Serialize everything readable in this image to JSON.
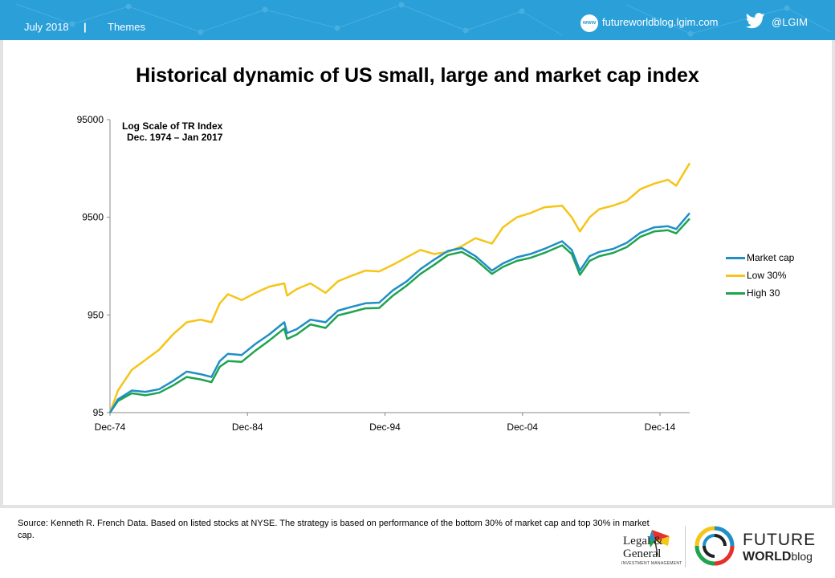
{
  "header": {
    "date": "July 2018",
    "separator": "|",
    "section": "Themes",
    "site_icon": "www-icon",
    "site": "futureworldblog.lgim.com",
    "social_icon": "twitter-icon",
    "handle": "@LGIM"
  },
  "chart_data": {
    "type": "line",
    "title": "Historical dynamic of US small, large and market cap index",
    "note_line1": "Log  Scale of TR Index",
    "note_line2": "Dec. 1974 – Jan 2017",
    "y_scale": "log",
    "ylim": [
      95,
      95000
    ],
    "y_ticks": [
      "95000",
      "9500",
      "950",
      "95"
    ],
    "x_ticks": [
      "Dec-74",
      "Dec-84",
      "Dec-94",
      "Dec-04",
      "Dec-14"
    ],
    "x_tick_years": [
      1974.92,
      1984.92,
      1994.92,
      2004.92,
      2014.92
    ],
    "xlim": [
      1974.92,
      2017.08
    ],
    "grid": false,
    "legend_position": "right",
    "series": [
      {
        "name": "Market cap",
        "color": "#1f8fc5",
        "points": [
          [
            1974.92,
            95
          ],
          [
            1975.5,
            130
          ],
          [
            1976.5,
            160
          ],
          [
            1977.5,
            155
          ],
          [
            1978.5,
            165
          ],
          [
            1979.5,
            200
          ],
          [
            1980.5,
            250
          ],
          [
            1981.5,
            235
          ],
          [
            1982.3,
            220
          ],
          [
            1982.9,
            320
          ],
          [
            1983.5,
            380
          ],
          [
            1984.5,
            370
          ],
          [
            1985.5,
            480
          ],
          [
            1986.5,
            600
          ],
          [
            1987.6,
            800
          ],
          [
            1987.8,
            620
          ],
          [
            1988.5,
            680
          ],
          [
            1989.5,
            850
          ],
          [
            1990.6,
            800
          ],
          [
            1991.5,
            1050
          ],
          [
            1992.5,
            1150
          ],
          [
            1993.5,
            1250
          ],
          [
            1994.5,
            1270
          ],
          [
            1995.5,
            1700
          ],
          [
            1996.5,
            2100
          ],
          [
            1997.5,
            2800
          ],
          [
            1998.5,
            3500
          ],
          [
            1999.5,
            4300
          ],
          [
            2000.5,
            4600
          ],
          [
            2001.5,
            3800
          ],
          [
            2002.7,
            2700
          ],
          [
            2003.5,
            3200
          ],
          [
            2004.5,
            3700
          ],
          [
            2005.5,
            4000
          ],
          [
            2006.5,
            4500
          ],
          [
            2007.8,
            5400
          ],
          [
            2008.5,
            4400
          ],
          [
            2009.1,
            2700
          ],
          [
            2009.8,
            3800
          ],
          [
            2010.5,
            4200
          ],
          [
            2011.5,
            4500
          ],
          [
            2012.5,
            5200
          ],
          [
            2013.5,
            6600
          ],
          [
            2014.5,
            7500
          ],
          [
            2015.5,
            7700
          ],
          [
            2016.1,
            7200
          ],
          [
            2017.08,
            10500
          ]
        ]
      },
      {
        "name": "Low 30%",
        "color": "#f5c518",
        "points": [
          [
            1974.92,
            95
          ],
          [
            1975.5,
            160
          ],
          [
            1976.5,
            260
          ],
          [
            1977.5,
            330
          ],
          [
            1978.5,
            420
          ],
          [
            1979.5,
            600
          ],
          [
            1980.5,
            800
          ],
          [
            1981.5,
            850
          ],
          [
            1982.3,
            800
          ],
          [
            1982.9,
            1250
          ],
          [
            1983.5,
            1550
          ],
          [
            1984.5,
            1350
          ],
          [
            1985.5,
            1600
          ],
          [
            1986.5,
            1850
          ],
          [
            1987.6,
            2000
          ],
          [
            1987.8,
            1500
          ],
          [
            1988.5,
            1750
          ],
          [
            1989.5,
            2000
          ],
          [
            1990.6,
            1600
          ],
          [
            1991.5,
            2100
          ],
          [
            1992.5,
            2400
          ],
          [
            1993.5,
            2700
          ],
          [
            1994.5,
            2650
          ],
          [
            1995.5,
            3100
          ],
          [
            1996.5,
            3700
          ],
          [
            1997.5,
            4400
          ],
          [
            1998.5,
            4000
          ],
          [
            1999.5,
            4200
          ],
          [
            2000.5,
            4800
          ],
          [
            2001.5,
            5800
          ],
          [
            2002.7,
            5100
          ],
          [
            2003.5,
            7500
          ],
          [
            2004.5,
            9500
          ],
          [
            2005.5,
            10500
          ],
          [
            2006.5,
            12000
          ],
          [
            2007.8,
            12500
          ],
          [
            2008.5,
            9500
          ],
          [
            2009.1,
            6800
          ],
          [
            2009.8,
            9500
          ],
          [
            2010.5,
            11500
          ],
          [
            2011.5,
            12500
          ],
          [
            2012.5,
            14000
          ],
          [
            2013.5,
            18500
          ],
          [
            2014.5,
            21000
          ],
          [
            2015.5,
            23000
          ],
          [
            2016.1,
            20000
          ],
          [
            2017.08,
            34000
          ]
        ]
      },
      {
        "name": "High 30",
        "color": "#1fa34f",
        "points": [
          [
            1974.92,
            95
          ],
          [
            1975.5,
            125
          ],
          [
            1976.5,
            150
          ],
          [
            1977.5,
            143
          ],
          [
            1978.5,
            152
          ],
          [
            1979.5,
            180
          ],
          [
            1980.5,
            220
          ],
          [
            1981.5,
            208
          ],
          [
            1982.3,
            195
          ],
          [
            1982.9,
            280
          ],
          [
            1983.5,
            320
          ],
          [
            1984.5,
            315
          ],
          [
            1985.5,
            410
          ],
          [
            1986.5,
            520
          ],
          [
            1987.6,
            690
          ],
          [
            1987.8,
            540
          ],
          [
            1988.5,
            600
          ],
          [
            1989.5,
            760
          ],
          [
            1990.6,
            700
          ],
          [
            1991.5,
            940
          ],
          [
            1992.5,
            1020
          ],
          [
            1993.5,
            1110
          ],
          [
            1994.5,
            1120
          ],
          [
            1995.5,
            1500
          ],
          [
            1996.5,
            1900
          ],
          [
            1997.5,
            2500
          ],
          [
            1998.5,
            3100
          ],
          [
            1999.5,
            3900
          ],
          [
            2000.5,
            4200
          ],
          [
            2001.5,
            3500
          ],
          [
            2002.7,
            2500
          ],
          [
            2003.5,
            2950
          ],
          [
            2004.5,
            3400
          ],
          [
            2005.5,
            3650
          ],
          [
            2006.5,
            4100
          ],
          [
            2007.8,
            4900
          ],
          [
            2008.5,
            4000
          ],
          [
            2009.1,
            2450
          ],
          [
            2009.8,
            3400
          ],
          [
            2010.5,
            3800
          ],
          [
            2011.5,
            4100
          ],
          [
            2012.5,
            4700
          ],
          [
            2013.5,
            6000
          ],
          [
            2014.5,
            6800
          ],
          [
            2015.5,
            7000
          ],
          [
            2016.1,
            6500
          ],
          [
            2017.08,
            9200
          ]
        ]
      }
    ]
  },
  "footer": {
    "source": "Source:  Kenneth R. French Data. Based on listed stocks at NYSE. The strategy is based on performance of the bottom 30% of market cap and top 30% in market cap.",
    "lg_logo_line1": "Legal &",
    "lg_logo_line2": "General",
    "lg_logo_sub": "INVESTMENT MANAGEMENT",
    "fw_icon": "future-world-icon",
    "fw_future": "FUTURE",
    "fw_world": "WORLD",
    "fw_blog": "blog"
  }
}
